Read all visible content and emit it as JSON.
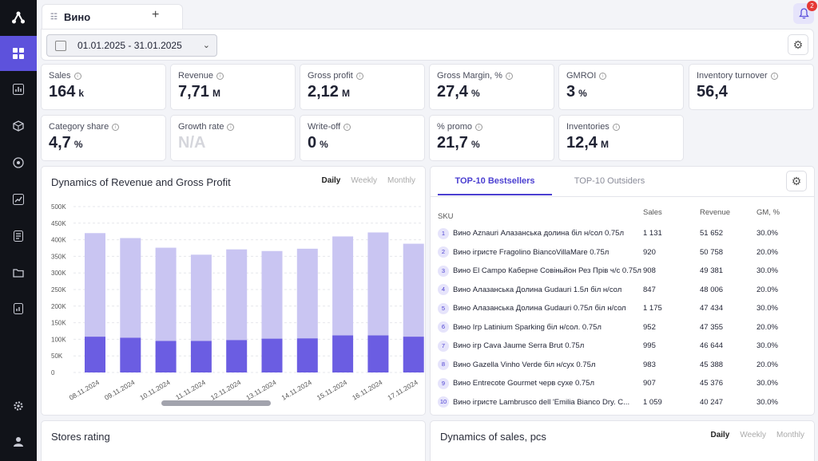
{
  "app": {
    "tab_title": "Вино",
    "add_tab": "+",
    "notifications": "2"
  },
  "filters": {
    "date_range": "01.01.2025 - 31.01.2025"
  },
  "kpis": [
    {
      "label": "Sales",
      "value": "164",
      "unit": "k"
    },
    {
      "label": "Revenue",
      "value": "7,71",
      "unit": "M"
    },
    {
      "label": "Gross profit",
      "value": "2,12",
      "unit": "M"
    },
    {
      "label": "Gross Margin, %",
      "value": "27,4",
      "unit": "%"
    },
    {
      "label": "GMROI",
      "value": "3",
      "unit": "%"
    },
    {
      "label": "Inventory turnover",
      "value": "56,4",
      "unit": ""
    },
    {
      "label": "Category share",
      "value": "4,7",
      "unit": "%"
    },
    {
      "label": "Growth rate",
      "value": "N/A",
      "unit": ""
    },
    {
      "label": "Write-off",
      "value": "0",
      "unit": "%"
    },
    {
      "label": "% promo",
      "value": "21,7",
      "unit": "%"
    },
    {
      "label": "Inventories",
      "value": "12,4",
      "unit": "M"
    }
  ],
  "revenue_chart": {
    "title": "Dynamics of Revenue and Gross Profit",
    "periods": [
      "Daily",
      "Weekly",
      "Monthly"
    ],
    "active_period": "Daily"
  },
  "chart_data": {
    "type": "bar",
    "stacked": true,
    "categories": [
      "08.11.2024",
      "09.11.2024",
      "10.11.2024",
      "11.11.2024",
      "12.11.2024",
      "13.11.2024",
      "14.11.2024",
      "15.11.2024",
      "16.11.2024",
      "17.11.2024"
    ],
    "series": [
      {
        "values": [
          108000,
          105000,
          95000,
          95000,
          98000,
          102000,
          103000,
          112000,
          112000,
          108000
        ]
      },
      {
        "values": [
          312000,
          300000,
          281000,
          260000,
          273000,
          264000,
          270000,
          298000,
          310000,
          280000
        ]
      }
    ],
    "yticks": [
      "0",
      "50K",
      "100K",
      "150K",
      "200K",
      "250K",
      "300K",
      "350K",
      "400K",
      "450K",
      "500K"
    ],
    "ylim": [
      0,
      500000
    ],
    "grid": true,
    "colors": [
      "#6b5de2",
      "#c9c5f2"
    ]
  },
  "bestsellers": {
    "tabs": [
      "TOP-10 Bestsellers",
      "TOP-10 Outsiders"
    ],
    "columns": [
      "SKU",
      "Sales",
      "Revenue",
      "GM, %"
    ],
    "rows": [
      {
        "rank": "1",
        "sku": "Вино Aznauri Алазанська долина біл н/сол 0.75л",
        "sales": "1 131",
        "revenue": "51 652",
        "gm": "30.0%"
      },
      {
        "rank": "2",
        "sku": "Вино ігристе Fragolino BiancoVillaMare 0.75л",
        "sales": "920",
        "revenue": "50 758",
        "gm": "20.0%"
      },
      {
        "rank": "3",
        "sku": "Вино El Campo Каберне Совіньйон Рез Прів ч/с 0.75л",
        "sales": "908",
        "revenue": "49 381",
        "gm": "30.0%"
      },
      {
        "rank": "4",
        "sku": "Вино Алазанська Долина Gudauri 1.5л біл н/сол",
        "sales": "847",
        "revenue": "48 006",
        "gm": "20.0%"
      },
      {
        "rank": "5",
        "sku": "Вино Алазанська Долина Gudauri 0.75л біл н/сол",
        "sales": "1 175",
        "revenue": "47 434",
        "gm": "30.0%"
      },
      {
        "rank": "6",
        "sku": "Вино Ігр Latinium Sparking біл н/сол. 0.75л",
        "sales": "952",
        "revenue": "47 355",
        "gm": "20.0%"
      },
      {
        "rank": "7",
        "sku": "Вино ігр Cava Jaume Serra Brut 0.75л",
        "sales": "995",
        "revenue": "46 644",
        "gm": "30.0%"
      },
      {
        "rank": "8",
        "sku": "Вино Gazella Vinho Verde біл н/сух 0.75л",
        "sales": "983",
        "revenue": "45 388",
        "gm": "20.0%"
      },
      {
        "rank": "9",
        "sku": "Вино Entrecote Gourmet черв сухе 0.75л",
        "sales": "907",
        "revenue": "45 376",
        "gm": "30.0%"
      },
      {
        "rank": "10",
        "sku": "Вино ігристе Lambrusco dell 'Emilia Bianco Dry. C...",
        "sales": "1 059",
        "revenue": "40 247",
        "gm": "30.0%"
      }
    ]
  },
  "stores": {
    "title": "Stores rating"
  },
  "sales_chart": {
    "title": "Dynamics of sales, pcs",
    "periods": [
      "Daily",
      "Weekly",
      "Monthly"
    ],
    "active_period": "Daily"
  }
}
